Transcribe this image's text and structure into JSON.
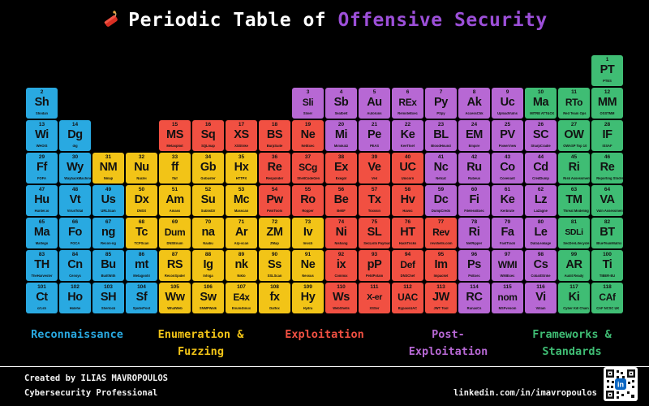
{
  "title": {
    "prefix": "Periodic Table of",
    "highlight": "Offensive Security",
    "highlight_color": "#9c4fd8",
    "icon": "dynamite-icon"
  },
  "categories": {
    "re": {
      "label": "Reconnaissance",
      "color": "#29a9e1"
    },
    "en": {
      "label": "Enumeration &\nFuzzing",
      "color": "#f2c417"
    },
    "ex": {
      "label": "Exploitation",
      "color": "#f15042"
    },
    "po": {
      "label": "Post-\nExploitation",
      "color": "#b768d4"
    },
    "fw": {
      "label": "Frameworks &\nStandards",
      "color": "#3fbd74"
    }
  },
  "legend_order": [
    "re",
    "en",
    "ex",
    "po",
    "fw"
  ],
  "elements": [
    {
      "n": 1,
      "sym": "PT",
      "name": "PTES",
      "cat": "fw",
      "row": 1,
      "col": 18
    },
    {
      "n": 2,
      "sym": "Sh",
      "name": "Shodan",
      "cat": "re",
      "row": 2,
      "col": 1
    },
    {
      "n": 3,
      "sym": "Sli",
      "name": "Sliver",
      "cat": "po",
      "row": 2,
      "col": 9
    },
    {
      "n": 4,
      "sym": "Sb",
      "name": "Seatbelt",
      "cat": "po",
      "row": 2,
      "col": 10
    },
    {
      "n": 5,
      "sym": "Au",
      "name": "Autoruns",
      "cat": "po",
      "row": 2,
      "col": 11
    },
    {
      "n": 6,
      "sym": "REx",
      "name": "RemoteExec",
      "cat": "po",
      "row": 2,
      "col": 12
    },
    {
      "n": 7,
      "sym": "Py",
      "name": "PSpy",
      "cat": "po",
      "row": 2,
      "col": 13
    },
    {
      "n": 8,
      "sym": "Ak",
      "name": "AccessChk",
      "cat": "po",
      "row": 2,
      "col": 14
    },
    {
      "n": 9,
      "sym": "Uc",
      "name": "UploadVulns",
      "cat": "po",
      "row": 2,
      "col": 15
    },
    {
      "n": 10,
      "sym": "Ma",
      "name": "MITRE ATT&CK",
      "cat": "fw",
      "row": 2,
      "col": 16
    },
    {
      "n": 11,
      "sym": "RTo",
      "name": "Red Team Ops",
      "cat": "fw",
      "row": 2,
      "col": 17
    },
    {
      "n": 12,
      "sym": "MM",
      "name": "OSSTMM",
      "cat": "fw",
      "row": 2,
      "col": 18
    },
    {
      "n": 13,
      "sym": "Wi",
      "name": "WHOIS",
      "cat": "re",
      "row": 3,
      "col": 1
    },
    {
      "n": 14,
      "sym": "Dg",
      "name": "dig",
      "cat": "re",
      "row": 3,
      "col": 2
    },
    {
      "n": 15,
      "sym": "MS",
      "name": "Metasploit",
      "cat": "ex",
      "row": 3,
      "col": 5
    },
    {
      "n": 16,
      "sym": "Sq",
      "name": "SQLmap",
      "cat": "ex",
      "row": 3,
      "col": 6
    },
    {
      "n": 17,
      "sym": "XS",
      "name": "XSStrike",
      "cat": "ex",
      "row": 3,
      "col": 7
    },
    {
      "n": 18,
      "sym": "BS",
      "name": "BurpSuite",
      "cat": "ex",
      "row": 3,
      "col": 8
    },
    {
      "n": 19,
      "sym": "Ne",
      "name": "NetExec",
      "cat": "ex",
      "row": 3,
      "col": 9
    },
    {
      "n": 20,
      "sym": "Mi",
      "name": "Mimikatz",
      "cat": "po",
      "row": 3,
      "col": 10
    },
    {
      "n": 21,
      "sym": "Pe",
      "name": "PEAS",
      "cat": "po",
      "row": 3,
      "col": 11
    },
    {
      "n": 22,
      "sym": "Ke",
      "name": "KeeThief",
      "cat": "po",
      "row": 3,
      "col": 12
    },
    {
      "n": 23,
      "sym": "BL",
      "name": "BloodHound",
      "cat": "po",
      "row": 3,
      "col": 13
    },
    {
      "n": 24,
      "sym": "EM",
      "name": "Empire",
      "cat": "po",
      "row": 3,
      "col": 14
    },
    {
      "n": 25,
      "sym": "PV",
      "name": "PowerView",
      "cat": "po",
      "row": 3,
      "col": 15
    },
    {
      "n": 26,
      "sym": "SC",
      "name": "SharpCradle",
      "cat": "po",
      "row": 3,
      "col": 16
    },
    {
      "n": 27,
      "sym": "OW",
      "name": "OWASP Top 10",
      "cat": "fw",
      "row": 3,
      "col": 17
    },
    {
      "n": 28,
      "sym": "IF",
      "name": "ISSAF",
      "cat": "fw",
      "row": 3,
      "col": 18
    },
    {
      "n": 29,
      "sym": "Ff",
      "name": "FOFA",
      "cat": "re",
      "row": 4,
      "col": 1
    },
    {
      "n": 30,
      "sym": "Wy",
      "name": "WaybackMachine",
      "cat": "re",
      "row": 4,
      "col": 2
    },
    {
      "n": 31,
      "sym": "NM",
      "name": "Nmap",
      "cat": "en",
      "row": 4,
      "col": 3
    },
    {
      "n": 32,
      "sym": "Nu",
      "name": "Nuclei",
      "cat": "en",
      "row": 4,
      "col": 4
    },
    {
      "n": 33,
      "sym": "ff",
      "name": "ffuf",
      "cat": "en",
      "row": 4,
      "col": 5
    },
    {
      "n": 34,
      "sym": "Gb",
      "name": "Gobuster",
      "cat": "en",
      "row": 4,
      "col": 6
    },
    {
      "n": 35,
      "sym": "Hx",
      "name": "HTTPX",
      "cat": "en",
      "row": 4,
      "col": 7
    },
    {
      "n": 36,
      "sym": "Re",
      "name": "Responder",
      "cat": "ex",
      "row": 4,
      "col": 8
    },
    {
      "n": 37,
      "sym": "SCg",
      "name": "ShellCodeGen",
      "cat": "ex",
      "row": 4,
      "col": 9
    },
    {
      "n": 38,
      "sym": "Ex",
      "name": "Exegol",
      "cat": "ex",
      "row": 4,
      "col": 10
    },
    {
      "n": 39,
      "sym": "Ve",
      "name": "Veil",
      "cat": "ex",
      "row": 4,
      "col": 11
    },
    {
      "n": 40,
      "sym": "UC",
      "name": "Unicorn",
      "cat": "ex",
      "row": 4,
      "col": 12
    },
    {
      "n": 41,
      "sym": "Nc",
      "name": "Netcat",
      "cat": "po",
      "row": 4,
      "col": 13
    },
    {
      "n": 42,
      "sym": "Ru",
      "name": "Rubeus",
      "cat": "po",
      "row": 4,
      "col": 14
    },
    {
      "n": 43,
      "sym": "Co",
      "name": "Covenant",
      "cat": "po",
      "row": 4,
      "col": 15
    },
    {
      "n": 44,
      "sym": "Cd",
      "name": "CredDump",
      "cat": "po",
      "row": 4,
      "col": 16
    },
    {
      "n": 45,
      "sym": "Ri",
      "name": "Risk Assessment",
      "cat": "fw",
      "row": 4,
      "col": 17
    },
    {
      "n": 46,
      "sym": "Re",
      "name": "Reporting Stndrs",
      "cat": "fw",
      "row": 4,
      "col": 18
    },
    {
      "n": 47,
      "sym": "Hu",
      "name": "Hunter.io",
      "cat": "re",
      "row": 5,
      "col": 1
    },
    {
      "n": 48,
      "sym": "Vt",
      "name": "VirusTotal",
      "cat": "re",
      "row": 5,
      "col": 2
    },
    {
      "n": 49,
      "sym": "Us",
      "name": "URLScan",
      "cat": "re",
      "row": 5,
      "col": 3
    },
    {
      "n": 50,
      "sym": "Dx",
      "name": "DNSX",
      "cat": "en",
      "row": 5,
      "col": 4
    },
    {
      "n": 51,
      "sym": "Am",
      "name": "Amass",
      "cat": "en",
      "row": 5,
      "col": 5
    },
    {
      "n": 52,
      "sym": "Su",
      "name": "Sublist3r",
      "cat": "en",
      "row": 5,
      "col": 6
    },
    {
      "n": 53,
      "sym": "Mc",
      "name": "Masscan",
      "cat": "en",
      "row": 5,
      "col": 7
    },
    {
      "n": 54,
      "sym": "Pw",
      "name": "PwnTools",
      "cat": "ex",
      "row": 5,
      "col": 8
    },
    {
      "n": 55,
      "sym": "Ro",
      "name": "Ropper",
      "cat": "ex",
      "row": 5,
      "col": 9
    },
    {
      "n": 56,
      "sym": "Be",
      "name": "BeEF",
      "cat": "ex",
      "row": 5,
      "col": 10
    },
    {
      "n": 57,
      "sym": "Tx",
      "name": "Toxssin",
      "cat": "ex",
      "row": 5,
      "col": 11
    },
    {
      "n": 58,
      "sym": "Hv",
      "name": "Havoc",
      "cat": "ex",
      "row": 5,
      "col": 12
    },
    {
      "n": 59,
      "sym": "Dc",
      "name": "DumpCreds",
      "cat": "po",
      "row": 5,
      "col": 13
    },
    {
      "n": 60,
      "sym": "Fi",
      "name": "FilelessExec",
      "cat": "po",
      "row": 5,
      "col": 14
    },
    {
      "n": 61,
      "sym": "Ke",
      "name": "Kerbrute",
      "cat": "po",
      "row": 5,
      "col": 15
    },
    {
      "n": 62,
      "sym": "Lz",
      "name": "LaZagne",
      "cat": "po",
      "row": 5,
      "col": 16
    },
    {
      "n": 63,
      "sym": "TM",
      "name": "Threat Modeling",
      "cat": "fw",
      "row": 5,
      "col": 17
    },
    {
      "n": 64,
      "sym": "VA",
      "name": "Vuln Assessment",
      "cat": "fw",
      "row": 5,
      "col": 18
    },
    {
      "n": 65,
      "sym": "Ma",
      "name": "Maltego",
      "cat": "re",
      "row": 6,
      "col": 1
    },
    {
      "n": 66,
      "sym": "Fo",
      "name": "FOCA",
      "cat": "re",
      "row": 6,
      "col": 2
    },
    {
      "n": 67,
      "sym": "ng",
      "name": "Recon-ng",
      "cat": "re",
      "row": 6,
      "col": 3
    },
    {
      "n": 68,
      "sym": "Tc",
      "name": "TCPScan",
      "cat": "en",
      "row": 6,
      "col": 4
    },
    {
      "n": 69,
      "sym": "Dum",
      "name": "DNSEnum",
      "cat": "en",
      "row": 6,
      "col": 5
    },
    {
      "n": 70,
      "sym": "na",
      "name": "Naabu",
      "cat": "en",
      "row": 6,
      "col": 6
    },
    {
      "n": 71,
      "sym": "Ar",
      "name": "Arp-scan",
      "cat": "en",
      "row": 6,
      "col": 7
    },
    {
      "n": 72,
      "sym": "ZM",
      "name": "ZMap",
      "cat": "en",
      "row": 6,
      "col": 8
    },
    {
      "n": 73,
      "sym": "Iv",
      "name": "Invicti",
      "cat": "en",
      "row": 6,
      "col": 9
    },
    {
      "n": 74,
      "sym": "Ni",
      "name": "Nishang",
      "cat": "ex",
      "row": 6,
      "col": 10
    },
    {
      "n": 75,
      "sym": "SL",
      "name": "SecLists Payloads",
      "cat": "ex",
      "row": 6,
      "col": 11
    },
    {
      "n": 76,
      "sym": "HT",
      "name": "HackTricks",
      "cat": "ex",
      "row": 6,
      "col": 12
    },
    {
      "n": 77,
      "sym": "Rev",
      "name": "revshells.com",
      "cat": "ex",
      "row": 6,
      "col": 13
    },
    {
      "n": 78,
      "sym": "Ri",
      "name": "NetRipper",
      "cat": "po",
      "row": 6,
      "col": 14
    },
    {
      "n": 79,
      "sym": "Fa",
      "name": "FastTrack",
      "cat": "po",
      "row": 6,
      "col": 15
    },
    {
      "n": 80,
      "sym": "Le",
      "name": "DataLeakage",
      "cat": "po",
      "row": 6,
      "col": 16
    },
    {
      "n": 81,
      "sym": "SDLi",
      "name": "SecDevLifecycle",
      "cat": "fw",
      "row": 6,
      "col": 17
    },
    {
      "n": 82,
      "sym": "BT",
      "name": "BlueTeamMatrix",
      "cat": "fw",
      "row": 6,
      "col": 18
    },
    {
      "n": 83,
      "sym": "TH",
      "name": "TheHarvester",
      "cat": "re",
      "row": 7,
      "col": 1
    },
    {
      "n": 84,
      "sym": "Cn",
      "name": "Censys",
      "cat": "re",
      "row": 7,
      "col": 2
    },
    {
      "n": 85,
      "sym": "Bu",
      "name": "BuiltWith",
      "cat": "re",
      "row": 7,
      "col": 3
    },
    {
      "n": 86,
      "sym": "mt",
      "name": "Metagoofil",
      "cat": "re",
      "row": 7,
      "col": 4
    },
    {
      "n": 87,
      "sym": "RS",
      "name": "ReconSpider",
      "cat": "en",
      "row": 7,
      "col": 5
    },
    {
      "n": 88,
      "sym": "Ig",
      "name": "Infoga",
      "cat": "en",
      "row": 7,
      "col": 6
    },
    {
      "n": 89,
      "sym": "nk",
      "name": "Nikto",
      "cat": "en",
      "row": 7,
      "col": 7
    },
    {
      "n": 90,
      "sym": "Ss",
      "name": "SSLScan",
      "cat": "en",
      "row": 7,
      "col": 8
    },
    {
      "n": 91,
      "sym": "Ne",
      "name": "Nessus",
      "cat": "en",
      "row": 7,
      "col": 9
    },
    {
      "n": 92,
      "sym": "ix",
      "name": "Commix",
      "cat": "ex",
      "row": 7,
      "col": 10
    },
    {
      "n": 93,
      "sym": "pP",
      "name": "PetitPotam",
      "cat": "ex",
      "row": 7,
      "col": 11
    },
    {
      "n": 94,
      "sym": "Def",
      "name": "DNSChef",
      "cat": "ex",
      "row": 7,
      "col": 12
    },
    {
      "n": 95,
      "sym": "Im",
      "name": "Impacket",
      "cat": "ex",
      "row": 7,
      "col": 13
    },
    {
      "n": 96,
      "sym": "Ps",
      "name": "PsExec",
      "cat": "po",
      "row": 7,
      "col": 14
    },
    {
      "n": 97,
      "sym": "WMI",
      "name": "WMIExec",
      "cat": "po",
      "row": 7,
      "col": 15
    },
    {
      "n": 98,
      "sym": "Cs",
      "name": "CobaltStrike",
      "cat": "po",
      "row": 7,
      "col": 16
    },
    {
      "n": 99,
      "sym": "AR",
      "name": "Audit Ready",
      "cat": "fw",
      "row": 7,
      "col": 17
    },
    {
      "n": 100,
      "sym": "Ti",
      "name": "TIBER-EU",
      "cat": "fw",
      "row": 7,
      "col": 18
    },
    {
      "n": 101,
      "sym": "Ct",
      "name": "crt.sh",
      "cat": "re",
      "row": 8,
      "col": 1
    },
    {
      "n": 102,
      "sym": "Ho",
      "name": "Holehe",
      "cat": "re",
      "row": 8,
      "col": 2
    },
    {
      "n": 103,
      "sym": "SH",
      "name": "Sherlock",
      "cat": "re",
      "row": 8,
      "col": 3
    },
    {
      "n": 104,
      "sym": "Sf",
      "name": "SpiderFoot",
      "cat": "re",
      "row": 8,
      "col": 4
    },
    {
      "n": 105,
      "sym": "Ww",
      "name": "WhatWeb",
      "cat": "en",
      "row": 8,
      "col": 5
    },
    {
      "n": 106,
      "sym": "Sw",
      "name": "SNMPWalk",
      "cat": "en",
      "row": 8,
      "col": 6
    },
    {
      "n": 107,
      "sym": "E4x",
      "name": "Enum4linux",
      "cat": "en",
      "row": 8,
      "col": 7
    },
    {
      "n": 108,
      "sym": "fx",
      "name": "Dalfox",
      "cat": "en",
      "row": 8,
      "col": 8
    },
    {
      "n": 109,
      "sym": "Hy",
      "name": "Hydra",
      "cat": "en",
      "row": 8,
      "col": 9
    },
    {
      "n": 110,
      "sym": "Ws",
      "name": "WebShells",
      "cat": "ex",
      "row": 8,
      "col": 10
    },
    {
      "n": 111,
      "sym": "X-er",
      "name": "XSSer",
      "cat": "ex",
      "row": 8,
      "col": 11
    },
    {
      "n": 112,
      "sym": "UAC",
      "name": "BypassUAC",
      "cat": "ex",
      "row": 8,
      "col": 12
    },
    {
      "n": 113,
      "sym": "JW",
      "name": "JWT Tool",
      "cat": "ex",
      "row": 8,
      "col": 13
    },
    {
      "n": 114,
      "sym": "RC",
      "name": "RunasCs",
      "cat": "po",
      "row": 8,
      "col": 14
    },
    {
      "n": 115,
      "sym": "nom",
      "name": "MSFvenom",
      "cat": "po",
      "row": 8,
      "col": 15
    },
    {
      "n": 116,
      "sym": "Vi",
      "name": "Villain",
      "cat": "po",
      "row": 8,
      "col": 16
    },
    {
      "n": 117,
      "sym": "Ki",
      "name": "Cyber Kill Chain",
      "cat": "fw",
      "row": 8,
      "col": 17
    },
    {
      "n": 118,
      "sym": "CAf",
      "name": "CAF NCSC UK",
      "cat": "fw",
      "row": 8,
      "col": 18
    }
  ],
  "footer": {
    "line1": "Created by ILIAS MAVROPOULOS",
    "line2": "Cybersecurity Professional",
    "link": "linkedin.com/in/imavropoulos",
    "qr_icon": "linkedin-qr-code"
  }
}
